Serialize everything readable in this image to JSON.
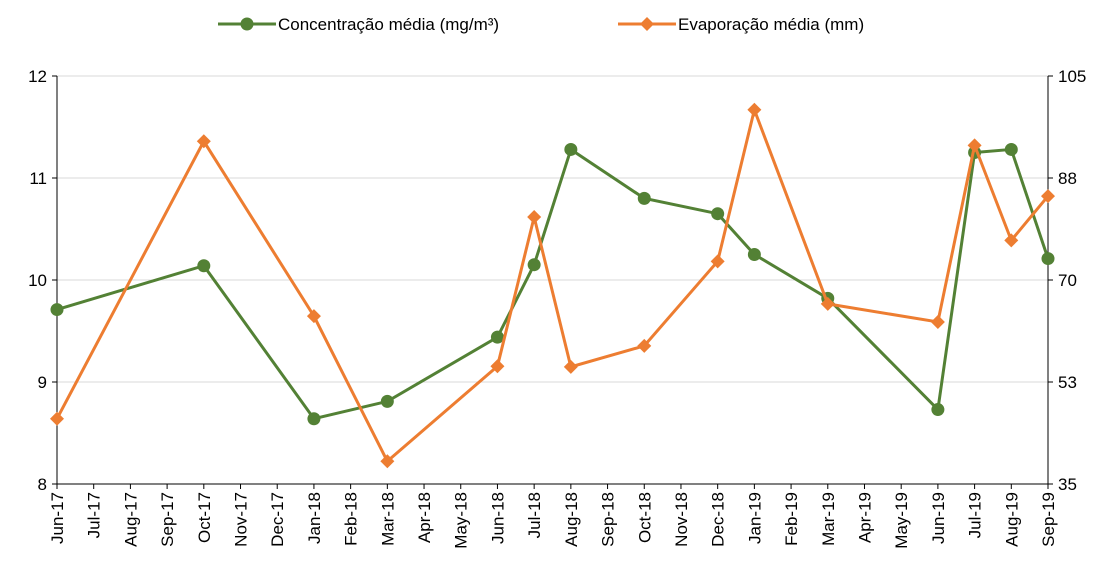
{
  "chart_data": {
    "type": "line",
    "xticks": [
      "Jun-17",
      "Jul-17",
      "Aug-17",
      "Sep-17",
      "Oct-17",
      "Nov-17",
      "Dec-17",
      "Jan-18",
      "Feb-18",
      "Mar-18",
      "Apr-18",
      "May-18",
      "Jun-18",
      "Jul-18",
      "Aug-18",
      "Sep-18",
      "Oct-18",
      "Nov-18",
      "Dec-18",
      "Jan-19",
      "Feb-19",
      "Mar-19",
      "Apr-19",
      "May-19",
      "Jun-19",
      "Jul-19",
      "Aug-19",
      "Sep-19"
    ],
    "x": [
      "Jun-17",
      "Oct-17",
      "Jan-18",
      "Mar-18",
      "Jun-18",
      "Jul-18",
      "Aug-18",
      "Oct-18",
      "Dec-18",
      "Jan-19",
      "Mar-19",
      "Jun-19",
      "Jul-19",
      "Aug-19",
      "Sep-19"
    ],
    "ylim": [
      8,
      12
    ],
    "yticks": [
      8,
      9,
      10,
      11,
      12
    ],
    "y2lim": [
      35,
      105
    ],
    "y2ticks": [
      35,
      {
        "value": 52.5,
        "label": "53"
      },
      70,
      {
        "value": 87.5,
        "label": "88"
      },
      105
    ],
    "grid": true,
    "legend": "top",
    "series": [
      {
        "name": "Concentração média (mg/m³)",
        "color": "#538135",
        "marker": "circle",
        "values": [
          9.71,
          10.14,
          8.64,
          8.81,
          9.44,
          10.15,
          11.28,
          10.8,
          10.65,
          10.25,
          9.82,
          8.73,
          11.25,
          11.28,
          10.21
        ]
      },
      {
        "name": "Evaporação média (mm)",
        "color": "#ed7d31",
        "marker": "diamond",
        "axis": "y2",
        "values": [
          46.2,
          93.8,
          63.8,
          38.9,
          55.2,
          80.8,
          55.1,
          58.7,
          73.2,
          99.2,
          65.9,
          62.8,
          93.1,
          76.8,
          84.4
        ]
      }
    ]
  }
}
